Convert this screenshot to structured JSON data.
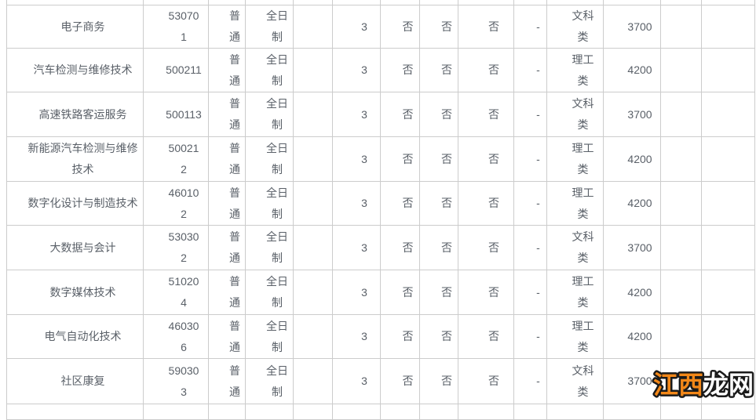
{
  "page": {
    "background": "#ffffff"
  },
  "table": {
    "border_color": "#cccccc",
    "text_color": "#5a6068",
    "rows": [
      {
        "name": [
          "电子商务"
        ],
        "code": [
          "53070",
          "1"
        ],
        "type": [
          "普",
          "通"
        ],
        "mode": [
          "全日",
          "制"
        ],
        "years": "3",
        "flag1": "否",
        "flag2": "否",
        "flag3": "否",
        "dash": "-",
        "category": [
          "文科",
          "类"
        ],
        "fee": "3700"
      },
      {
        "name": [
          "汽车检测与维修技术"
        ],
        "code": [
          "500211"
        ],
        "type": [
          "普",
          "通"
        ],
        "mode": [
          "全日",
          "制"
        ],
        "years": "3",
        "flag1": "否",
        "flag2": "否",
        "flag3": "否",
        "dash": "-",
        "category": [
          "理工",
          "类"
        ],
        "fee": "4200"
      },
      {
        "name": [
          "高速铁路客运服务"
        ],
        "code": [
          "500113"
        ],
        "type": [
          "普",
          "通"
        ],
        "mode": [
          "全日",
          "制"
        ],
        "years": "3",
        "flag1": "否",
        "flag2": "否",
        "flag3": "否",
        "dash": "-",
        "category": [
          "文科",
          "类"
        ],
        "fee": "3700"
      },
      {
        "name": [
          "新能源汽车检测与维修",
          "技术"
        ],
        "code": [
          "50021",
          "2"
        ],
        "type": [
          "普",
          "通"
        ],
        "mode": [
          "全日",
          "制"
        ],
        "years": "3",
        "flag1": "否",
        "flag2": "否",
        "flag3": "否",
        "dash": "-",
        "category": [
          "理工",
          "类"
        ],
        "fee": "4200"
      },
      {
        "name": [
          "数字化设计与制造技术"
        ],
        "code": [
          "46010",
          "2"
        ],
        "type": [
          "普",
          "通"
        ],
        "mode": [
          "全日",
          "制"
        ],
        "years": "3",
        "flag1": "否",
        "flag2": "否",
        "flag3": "否",
        "dash": "-",
        "category": [
          "理工",
          "类"
        ],
        "fee": "4200"
      },
      {
        "name": [
          "大数据与会计"
        ],
        "code": [
          "53030",
          "2"
        ],
        "type": [
          "普",
          "通"
        ],
        "mode": [
          "全日",
          "制"
        ],
        "years": "3",
        "flag1": "否",
        "flag2": "否",
        "flag3": "否",
        "dash": "-",
        "category": [
          "文科",
          "类"
        ],
        "fee": "3700"
      },
      {
        "name": [
          "数字媒体技术"
        ],
        "code": [
          "51020",
          "4"
        ],
        "type": [
          "普",
          "通"
        ],
        "mode": [
          "全日",
          "制"
        ],
        "years": "3",
        "flag1": "否",
        "flag2": "否",
        "flag3": "否",
        "dash": "-",
        "category": [
          "理工",
          "类"
        ],
        "fee": "4200"
      },
      {
        "name": [
          "电气自动化技术"
        ],
        "code": [
          "46030",
          "6"
        ],
        "type": [
          "普",
          "通"
        ],
        "mode": [
          "全日",
          "制"
        ],
        "years": "3",
        "flag1": "否",
        "flag2": "否",
        "flag3": "否",
        "dash": "-",
        "category": [
          "理工",
          "类"
        ],
        "fee": "4200"
      },
      {
        "name": [
          "社区康复"
        ],
        "code": [
          "59030",
          "3"
        ],
        "type": [
          "普",
          "通"
        ],
        "mode": [
          "全日",
          "制"
        ],
        "years": "3",
        "flag1": "否",
        "flag2": "否",
        "flag3": "否",
        "dash": "-",
        "category": [
          "文科",
          "类"
        ],
        "fee": "3700"
      }
    ]
  },
  "watermark": {
    "part1": "江西",
    "part2": "龙网",
    "part1_color": "#f28718",
    "part2_color": "#ffffff",
    "outline_color": "#1a1a1a"
  }
}
